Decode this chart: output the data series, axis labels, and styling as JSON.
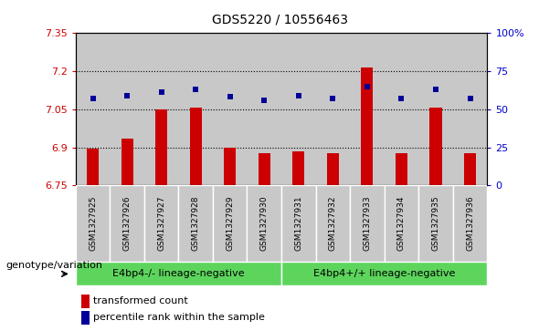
{
  "title": "GDS5220 / 10556463",
  "samples": [
    "GSM1327925",
    "GSM1327926",
    "GSM1327927",
    "GSM1327928",
    "GSM1327929",
    "GSM1327930",
    "GSM1327931",
    "GSM1327932",
    "GSM1327933",
    "GSM1327934",
    "GSM1327935",
    "GSM1327936"
  ],
  "transformed_count": [
    6.895,
    6.935,
    7.05,
    7.055,
    6.9,
    6.875,
    6.885,
    6.875,
    7.215,
    6.875,
    7.055,
    6.875
  ],
  "percentile_rank": [
    57,
    59,
    61,
    63,
    58,
    56,
    59,
    57,
    65,
    57,
    63,
    57
  ],
  "ylim_left": [
    6.75,
    7.35
  ],
  "ylim_right": [
    0,
    100
  ],
  "yticks_left": [
    6.75,
    6.9,
    7.05,
    7.2,
    7.35
  ],
  "yticks_right": [
    0,
    25,
    50,
    75,
    100
  ],
  "ytick_labels_left": [
    "6.75",
    "6.9",
    "7.05",
    "7.2",
    "7.35"
  ],
  "ytick_labels_right": [
    "0",
    "25",
    "50",
    "75",
    "100%"
  ],
  "hlines": [
    6.9,
    7.05,
    7.2
  ],
  "groups": [
    {
      "label": "E4bp4-/- lineage-negative",
      "start": 0,
      "end": 5
    },
    {
      "label": "E4bp4+/+ lineage-negative",
      "start": 6,
      "end": 11
    }
  ],
  "group_color": "#5DD55D",
  "bar_color": "#CC0000",
  "dot_color": "#000099",
  "bar_bottom": 6.75,
  "tick_color_left": "#CC0000",
  "tick_color_right": "#0000CC",
  "legend_bar": "transformed count",
  "legend_dot": "percentile rank within the sample",
  "sample_bg_color": "#C8C8C8",
  "xlabel_left": "genotype/variation"
}
